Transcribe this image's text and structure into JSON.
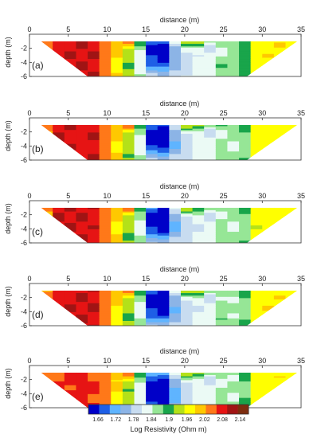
{
  "chart_data": [
    {
      "type": "heatmap",
      "panel_label": "(a)",
      "xlabel": "distance (m)",
      "ylabel": "depth (m)",
      "xlim": [
        0,
        35
      ],
      "ylim": [
        -6,
        0
      ],
      "x_ticks": [
        0,
        5,
        10,
        15,
        20,
        25,
        30,
        35
      ],
      "y_ticks": [
        -2,
        -4,
        -6
      ],
      "section_outline": [
        [
          1.5,
          -1
        ],
        [
          34.5,
          -1
        ],
        [
          28,
          -6
        ],
        [
          7.5,
          -6
        ]
      ],
      "conductive_anomaly_center": [
        16.8,
        -2
      ],
      "notes": "resistive (red) zone 2-9 m, conductive (blue) body centred near 17 m"
    },
    {
      "type": "heatmap",
      "panel_label": "(b)",
      "xlabel": "distance (m)",
      "ylabel": "depth (m)",
      "xlim": [
        0,
        35
      ],
      "ylim": [
        -6,
        0
      ],
      "x_ticks": [
        0,
        5,
        10,
        15,
        20,
        25,
        30,
        35
      ],
      "y_ticks": [
        -2,
        -4,
        -6
      ],
      "section_outline": [
        [
          1.5,
          -1
        ],
        [
          34.5,
          -1
        ],
        [
          28,
          -6
        ],
        [
          7.5,
          -6
        ]
      ],
      "conductive_anomaly_center": [
        16.8,
        -2
      ]
    },
    {
      "type": "heatmap",
      "panel_label": "(c)",
      "xlabel": "distance (m)",
      "ylabel": "depth (m)",
      "xlim": [
        0,
        35
      ],
      "ylim": [
        -6,
        0
      ],
      "x_ticks": [
        0,
        5,
        10,
        15,
        20,
        25,
        30,
        35
      ],
      "y_ticks": [
        -2,
        -4,
        -6
      ],
      "section_outline": [
        [
          1.5,
          -1
        ],
        [
          34.5,
          -1
        ],
        [
          28,
          -6
        ],
        [
          7.5,
          -6
        ]
      ],
      "conductive_anomaly_center": [
        16.8,
        -2
      ]
    },
    {
      "type": "heatmap",
      "panel_label": "(d)",
      "xlabel": "distance (m)",
      "ylabel": "depth (m)",
      "xlim": [
        0,
        35
      ],
      "ylim": [
        -6,
        0
      ],
      "x_ticks": [
        0,
        5,
        10,
        15,
        20,
        25,
        30,
        35
      ],
      "y_ticks": [
        -2,
        -4,
        -6
      ],
      "section_outline": [
        [
          1.5,
          -1
        ],
        [
          34.5,
          -1
        ],
        [
          28,
          -6
        ],
        [
          7.5,
          -6
        ]
      ],
      "conductive_anomaly_center": [
        16.8,
        -2
      ]
    },
    {
      "type": "heatmap",
      "panel_label": "(e)",
      "xlabel": "distance (m)",
      "ylabel": "depth (m)",
      "xlim": [
        0,
        35
      ],
      "ylim": [
        -6,
        0
      ],
      "x_ticks": [
        0,
        5,
        10,
        15,
        20,
        25,
        30,
        35
      ],
      "y_ticks": [
        -2,
        -4,
        -6
      ],
      "section_outline": [
        [
          1.5,
          -1
        ],
        [
          34.5,
          -1
        ],
        [
          28,
          -6
        ],
        [
          7.5,
          -6
        ]
      ],
      "conductive_anomaly_center": [
        16.8,
        -2
      ]
    }
  ],
  "colorbar": {
    "title": "Log Resistivity (Ohm m)",
    "tick_labels": [
      "1.66",
      "1.72",
      "1.78",
      "1.84",
      "1.9",
      "1.96",
      "2.02",
      "2.08",
      "2.14"
    ],
    "colors": [
      "#0000c8",
      "#1e5fe6",
      "#5fb4ff",
      "#8cb4e6",
      "#c8dcf0",
      "#ebfaf5",
      "#96e696",
      "#19a54b",
      "#b4e119",
      "#ffff00",
      "#ffc800",
      "#ff7819",
      "#e61414",
      "#a01414",
      "#7d2d0f"
    ]
  }
}
